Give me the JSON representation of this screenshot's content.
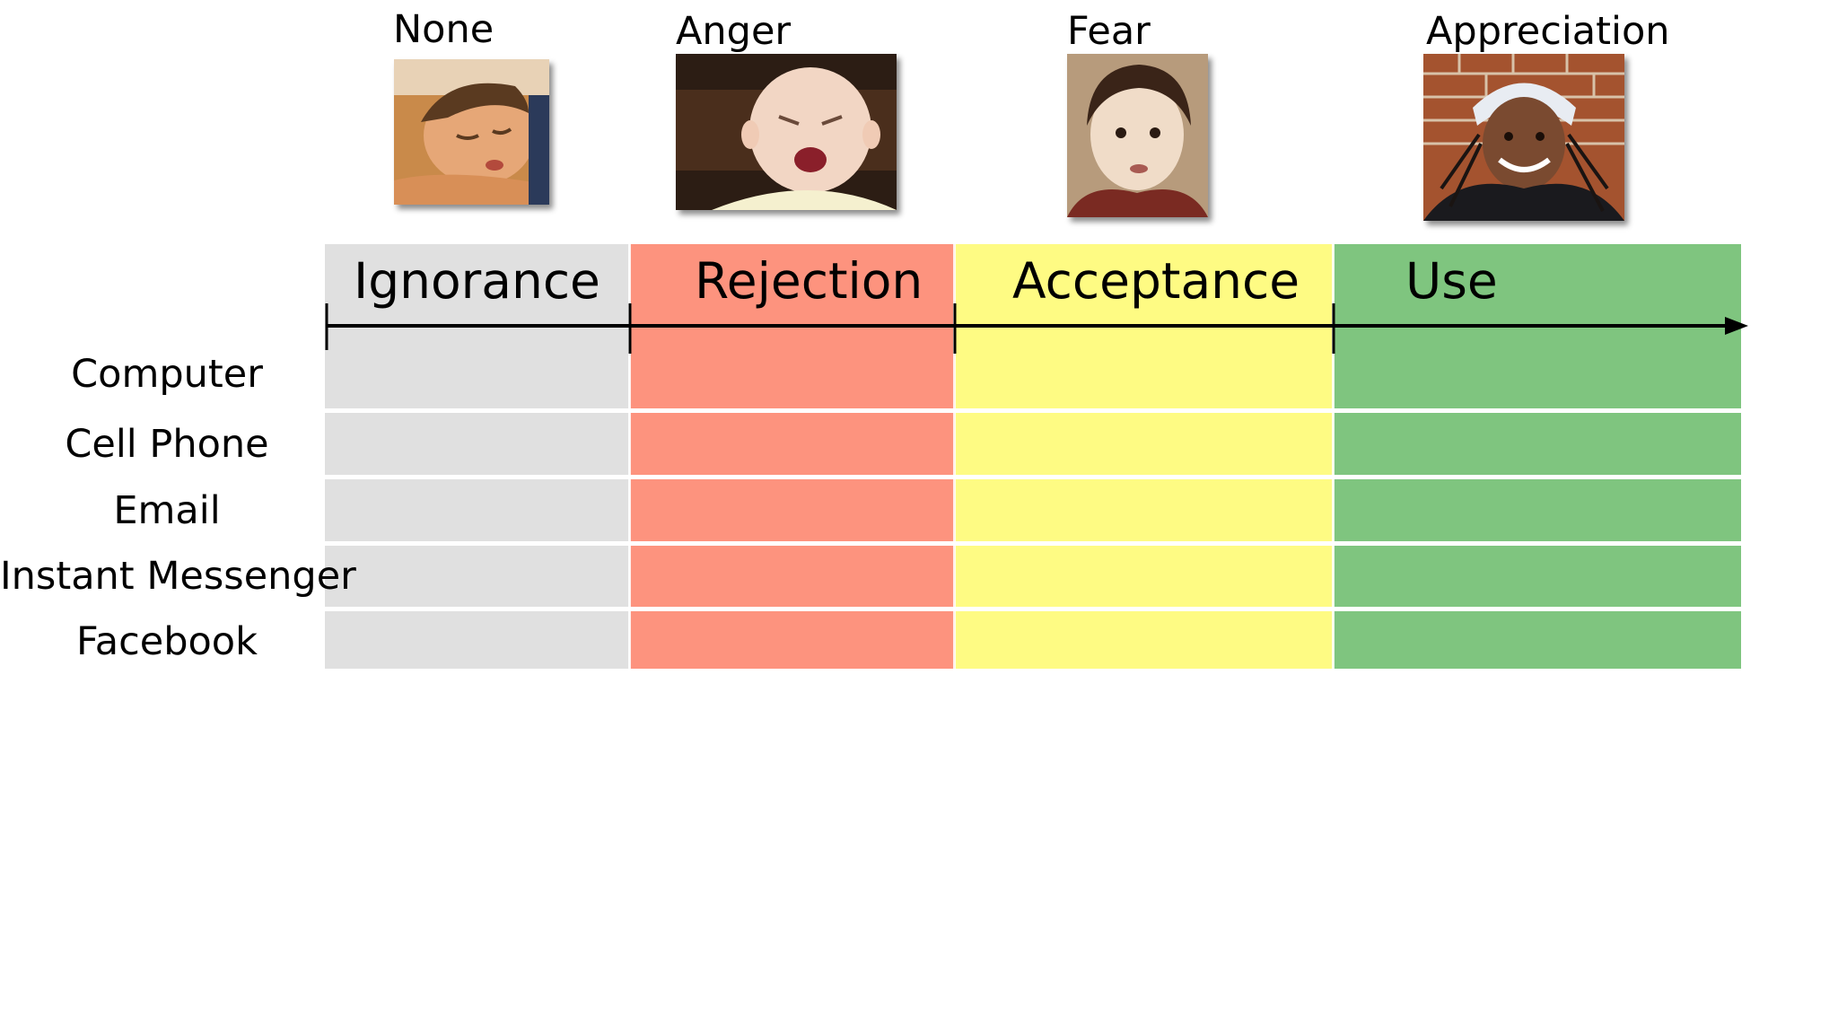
{
  "emotions": [
    {
      "label": "None"
    },
    {
      "label": "Anger"
    },
    {
      "label": "Fear"
    },
    {
      "label": "Appreciation"
    }
  ],
  "stages": [
    {
      "label": "Ignorance",
      "color": "#e0e0e0"
    },
    {
      "label": "Rejection",
      "color": "#fd937e"
    },
    {
      "label": "Acceptance",
      "color": "#fefb83"
    },
    {
      "label": "Use",
      "color": "#7fc57f"
    }
  ],
  "technologies": [
    {
      "label": "Computer"
    },
    {
      "label": "Cell Phone"
    },
    {
      "label": "Email"
    },
    {
      "label": "Instant Messenger"
    },
    {
      "label": "Facebook"
    }
  ],
  "axis_color": "#000000"
}
